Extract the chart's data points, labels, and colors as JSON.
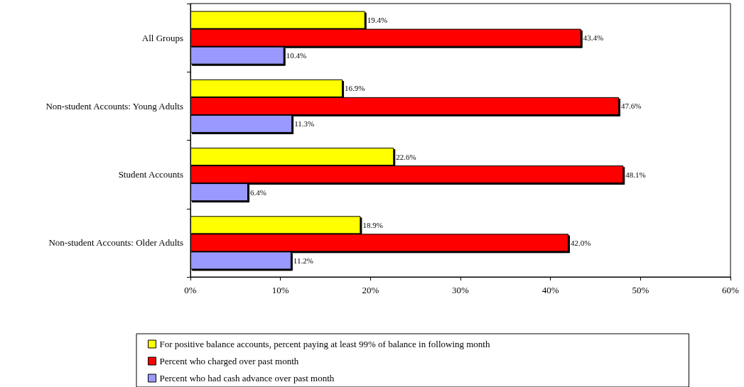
{
  "chart_data": {
    "type": "bar",
    "orientation": "horizontal",
    "categories": [
      "All Groups",
      "Non-student Accounts: Young Adults",
      "Student Accounts",
      "Non-student Accounts: Older Adults"
    ],
    "series": [
      {
        "name": "For positive balance accounts, percent paying at least 99% of balance in following month",
        "color": "#ffff00",
        "values": [
          19.4,
          16.9,
          22.6,
          18.9
        ],
        "value_labels": [
          "19.4%",
          "16.9%",
          "22.6%",
          "18.9%"
        ]
      },
      {
        "name": "Percent who charged over past month",
        "color": "#ff0000",
        "values": [
          43.4,
          47.6,
          48.1,
          42.0
        ],
        "value_labels": [
          "43.4%",
          "47.6%",
          "48.1%",
          "42.0%"
        ]
      },
      {
        "name": "Percent who had cash advance over past month",
        "color": "#9999ff",
        "values": [
          10.4,
          11.3,
          6.4,
          11.2
        ],
        "value_labels": [
          "10.4%",
          "11.3%",
          "6.4%",
          "11.2%"
        ]
      }
    ],
    "xlim": [
      0,
      60
    ],
    "xticks": [
      {
        "value": 0,
        "label": "0%"
      },
      {
        "value": 10,
        "label": "10%"
      },
      {
        "value": 20,
        "label": "20%"
      },
      {
        "value": 30,
        "label": "30%"
      },
      {
        "value": 40,
        "label": "40%"
      },
      {
        "value": 50,
        "label": "50%"
      },
      {
        "value": 60,
        "label": "60%"
      }
    ],
    "grid": false,
    "legend": "bottom"
  }
}
